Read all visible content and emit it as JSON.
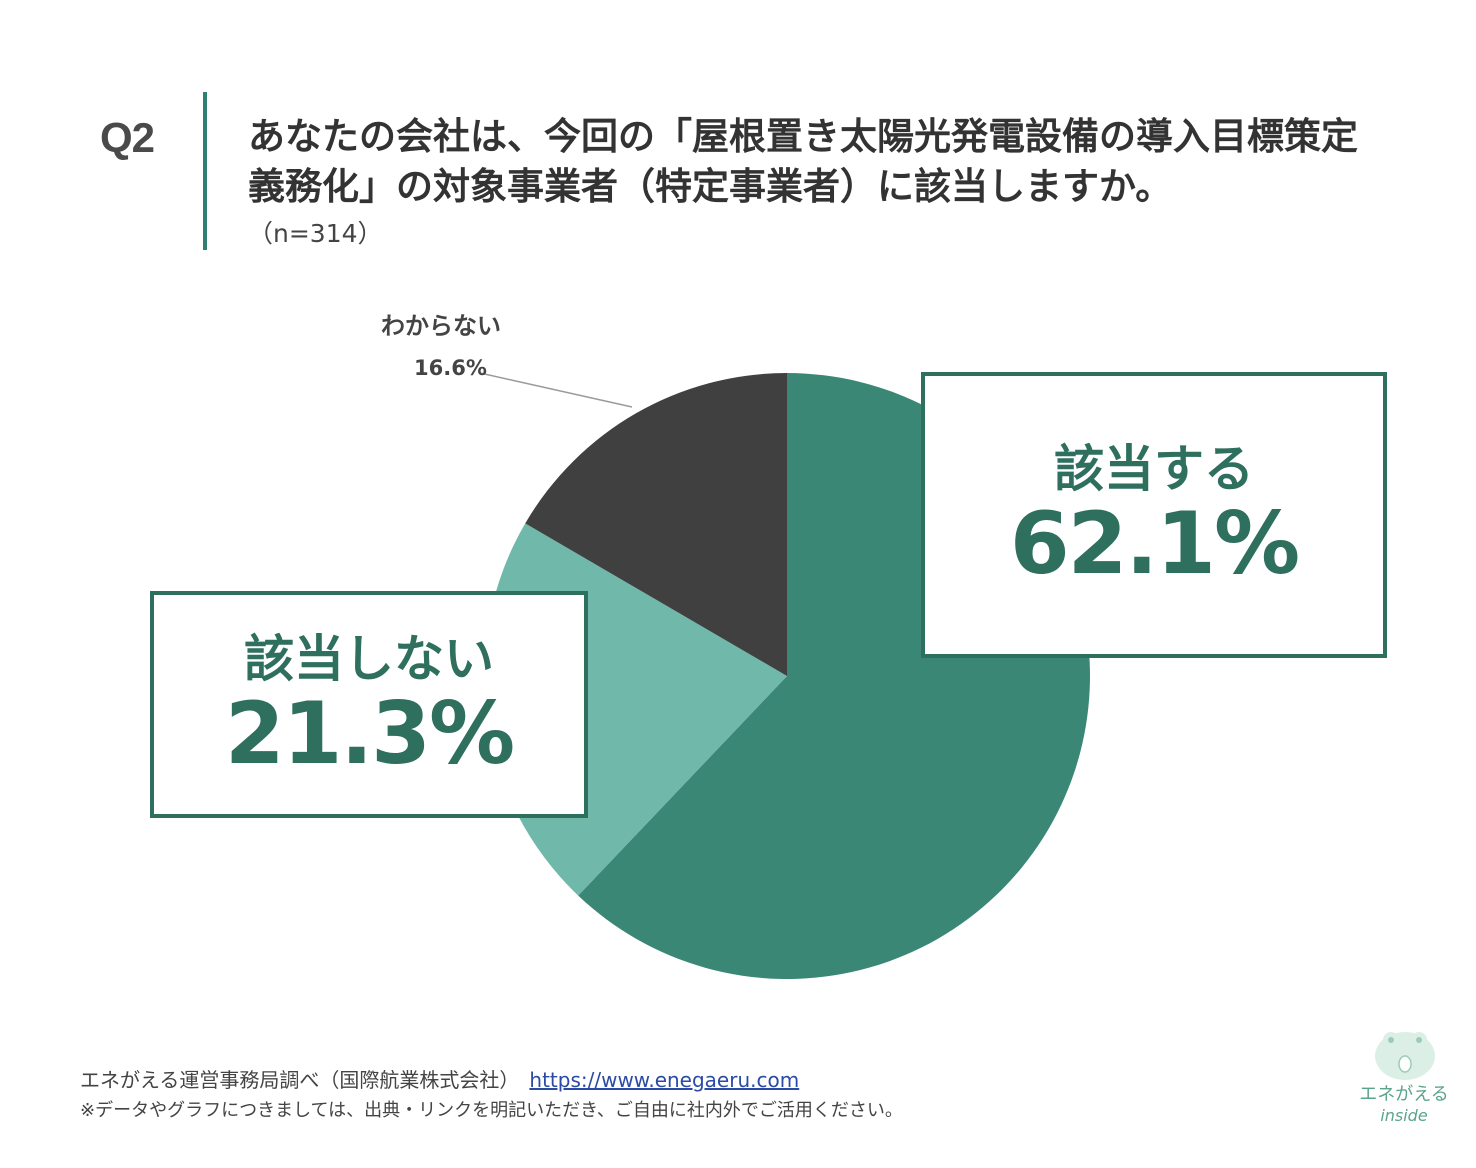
{
  "question": {
    "number": "Q2",
    "line1": "あなたの会社は、今回の「屋根置き太陽光発電設備の導入目標策定",
    "line2": "義務化」の対象事業者（特定事業者）に該当しますか。",
    "sample": "（n=314）"
  },
  "chart_data": {
    "type": "pie",
    "categories": [
      "該当する",
      "該当しない",
      "わからない"
    ],
    "values": [
      62.1,
      21.3,
      16.6
    ],
    "value_labels": [
      "62.1%",
      "21.3%",
      "16.6%"
    ],
    "unit": "%",
    "colors": [
      "#3b8776",
      "#6fb8aa",
      "#404040"
    ],
    "start": "12 o'clock",
    "direction": "clockwise"
  },
  "footer": {
    "source": "エネがえる運営事務局調べ（国際航業株式会社）",
    "url": "https://www.enegaeru.com",
    "note": "※データやグラフにつきましては、出典・リンクを明記いただき、ご自由に社内外でご活用ください。"
  },
  "logo": {
    "name": "エネがえる",
    "sub": "inside",
    "icon": "frog-mascot-icon"
  }
}
